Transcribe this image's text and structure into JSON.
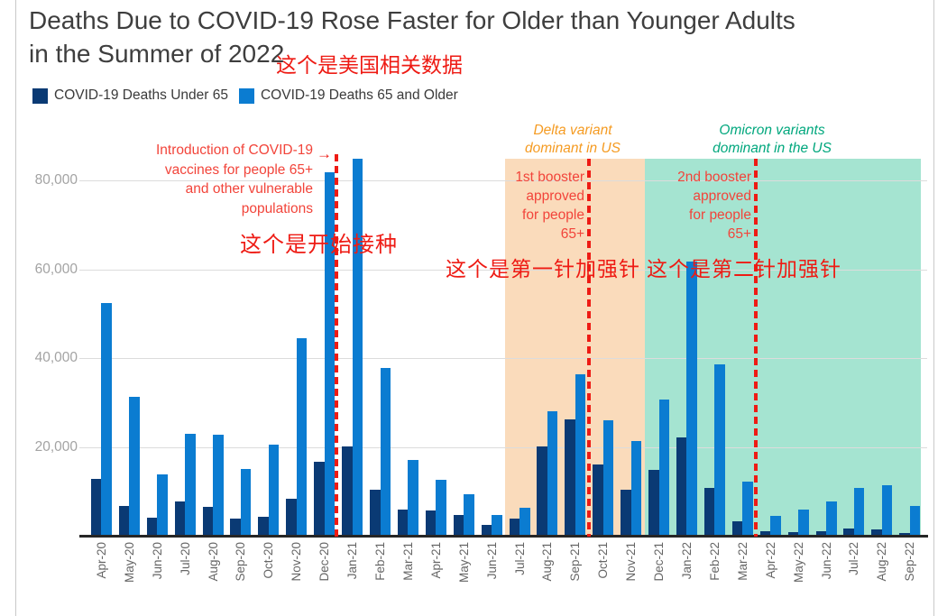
{
  "page": {
    "title_line1": "Deaths Due to COVID-19 Rose Faster for Older than Younger Adults",
    "title_line2": "in the Summer of 2022",
    "subtitle_zh": "这个是美国相关数据"
  },
  "annotations": {
    "vaccine_intro": {
      "lines": [
        "Introduction of COVID-19",
        "vaccines for people 65+",
        "and other vulnerable",
        "populations"
      ],
      "arrow": "→",
      "zh": "这个是开始接种",
      "color": "#f2443a"
    },
    "delta": {
      "lines": [
        "Delta variant",
        "dominant in US"
      ],
      "color": "#f59b22"
    },
    "booster1": {
      "lines": [
        "1st booster",
        "approved",
        "for people",
        "65+"
      ],
      "zh": "这个是第一针加强针",
      "color": "#f2443a"
    },
    "omicron": {
      "lines": [
        "Omicron variants",
        "dominant in the US"
      ],
      "color": "#00a77d"
    },
    "booster2": {
      "lines": [
        "2nd booster",
        "approved",
        "for people",
        "65+"
      ],
      "zh": "这个是第二针加强针",
      "color": "#f2443a"
    }
  },
  "chart_data": {
    "type": "bar",
    "title": "Deaths Due to COVID-19 Rose Faster for Older than Younger Adults in the Summer of 2022",
    "xlabel": "",
    "ylabel": "",
    "ylim": [
      0,
      89340
    ],
    "yticks": [
      20000,
      40000,
      60000,
      80000
    ],
    "grid": "horizontal",
    "legend_position": "top-left",
    "categories": [
      "Apr-20",
      "May-20",
      "Jun-20",
      "Jul-20",
      "Aug-20",
      "Sep-20",
      "Oct-20",
      "Nov-20",
      "Dec-20",
      "Jan-21",
      "Feb-21",
      "Mar-21",
      "Apr-21",
      "May-21",
      "Jun-21",
      "Jul-21",
      "Aug-21",
      "Sep-21",
      "Oct-21",
      "Nov-21",
      "Dec-21",
      "Jan-22",
      "Feb-22",
      "Mar-22",
      "Apr-22",
      "May-22",
      "Jun-22",
      "Jul-22",
      "Aug-22",
      "Sep-22"
    ],
    "series": [
      {
        "name": "COVID-19 Deaths Under 65",
        "color": "#0a3a74",
        "values": [
          13000,
          7000,
          4200,
          8000,
          6700,
          4000,
          4400,
          8500,
          16800,
          20300,
          10500,
          6000,
          5800,
          4900,
          2700,
          4100,
          20400,
          26500,
          16300,
          10600,
          15000,
          22300,
          11000,
          3500,
          1200,
          1100,
          1300,
          1900,
          1600,
          800
        ]
      },
      {
        "name": "COVID-19 Deaths 65 and Older",
        "color": "#0b7cd1",
        "values": [
          52500,
          31500,
          14000,
          23200,
          23000,
          15300,
          20700,
          44700,
          82000,
          85000,
          38000,
          17300,
          12800,
          9500,
          4800,
          6500,
          28300,
          36600,
          26100,
          21500,
          30800,
          62000,
          38700,
          12300,
          4600,
          6000,
          7900,
          11000,
          11500,
          6900
        ]
      }
    ],
    "regions": [
      {
        "label": "Delta variant dominant in US",
        "start": "Jul-21",
        "end": "Nov-21",
        "fill": "#fadbbb",
        "label_color": "#f59b22"
      },
      {
        "label": "Omicron variants dominant in the US",
        "start": "Dec-21",
        "end": "Sep-22",
        "fill": "#a5e4d1",
        "label_color": "#00a77d"
      }
    ],
    "vlines": [
      {
        "label": "Introduction of COVID-19 vaccines for people 65+ and other vulnerable populations",
        "between": [
          "Dec-20",
          "Jan-21"
        ],
        "color": "#ee1b14"
      },
      {
        "label": "1st booster approved for people 65+",
        "between": [
          "Sep-21",
          "Oct-21"
        ],
        "color": "#ee1b14"
      },
      {
        "label": "2nd booster approved for people 65+",
        "between": [
          "Mar-22",
          "Apr-22"
        ],
        "color": "#ee1b14"
      }
    ]
  }
}
